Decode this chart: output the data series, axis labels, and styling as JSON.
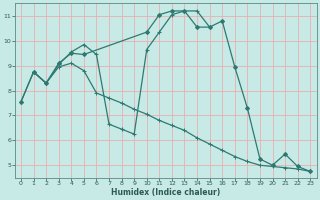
{
  "xlabel": "Humidex (Indice chaleur)",
  "bg_color": "#c8eae6",
  "line_color": "#2d7a72",
  "grid_color": "#e8b0b0",
  "xlim": [
    -0.5,
    23.5
  ],
  "ylim": [
    4.5,
    11.5
  ],
  "xticks": [
    0,
    1,
    2,
    3,
    4,
    5,
    6,
    7,
    8,
    9,
    10,
    11,
    12,
    13,
    14,
    15,
    16,
    17,
    18,
    19,
    20,
    21,
    22,
    23
  ],
  "yticks": [
    5,
    6,
    7,
    8,
    9,
    10,
    11
  ],
  "curve1_x": [
    0,
    1,
    2,
    3,
    4,
    5,
    10,
    11,
    12,
    13,
    14,
    15,
    16,
    17,
    18,
    19,
    20,
    21,
    22,
    23
  ],
  "curve1_y": [
    7.55,
    8.75,
    8.3,
    9.1,
    9.5,
    9.45,
    10.35,
    11.05,
    11.2,
    11.2,
    10.55,
    10.55,
    10.8,
    8.95,
    7.3,
    5.25,
    5.0,
    5.45,
    4.95,
    4.75
  ],
  "curve2_x": [
    1,
    2,
    3,
    4,
    5,
    6,
    7,
    8,
    9,
    10,
    11,
    12,
    13,
    14,
    15
  ],
  "curve2_y": [
    8.75,
    8.3,
    9.05,
    9.55,
    9.85,
    9.45,
    6.65,
    6.45,
    6.25,
    9.65,
    10.35,
    11.05,
    11.2,
    11.2,
    10.55
  ],
  "curve3_x": [
    0,
    1,
    2,
    3,
    4,
    5,
    6,
    7,
    8,
    9,
    10,
    11,
    12,
    13,
    14,
    15,
    16,
    17,
    18,
    19,
    20,
    21,
    22,
    23
  ],
  "curve3_y": [
    7.55,
    8.75,
    8.3,
    8.95,
    9.1,
    8.8,
    7.9,
    7.7,
    7.5,
    7.25,
    7.05,
    6.8,
    6.6,
    6.4,
    6.1,
    5.85,
    5.6,
    5.35,
    5.15,
    5.0,
    4.95,
    4.9,
    4.85,
    4.75
  ],
  "xlabel_fontsize": 5.5,
  "tick_fontsize": 4.5,
  "xlabel_color": "#2d5a55",
  "tick_color": "#2d5a55"
}
